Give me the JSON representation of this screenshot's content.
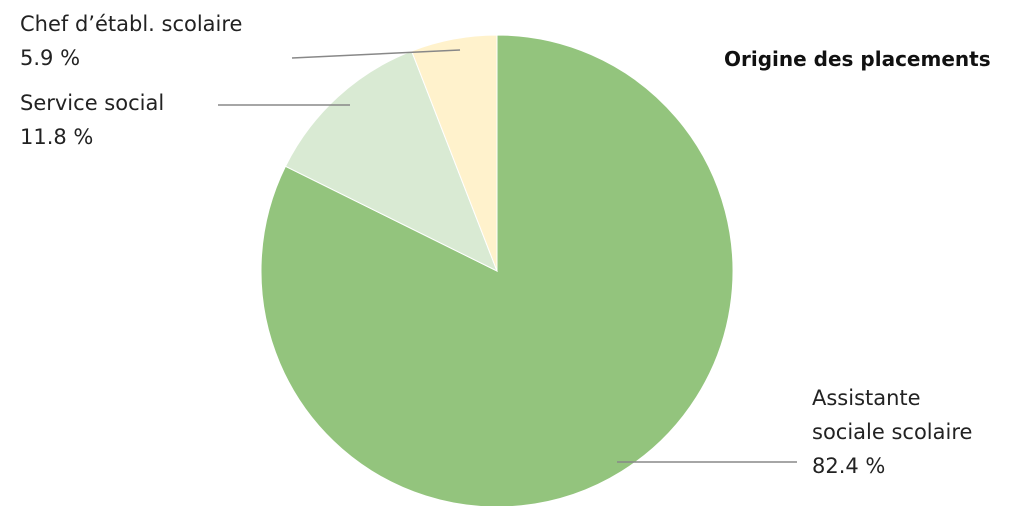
{
  "chart_data": {
    "type": "pie",
    "title": "Origine des placements",
    "start_angle_deg": 0,
    "direction": "clockwise",
    "slices": [
      {
        "category": "Assistante sociale scolaire",
        "value": 82.4,
        "label_lines": [
          "Assistante",
          "sociale scolaire"
        ],
        "value_label": "82.4 %",
        "color": "#93c47d"
      },
      {
        "category": "Service social",
        "value": 11.8,
        "label_lines": [
          "Service social"
        ],
        "value_label": "11.8 %",
        "color": "#d9ead3"
      },
      {
        "category": "Chef d’établ. scolaire",
        "value": 5.9,
        "label_lines": [
          "Chef d’établ. scolaire"
        ],
        "value_label": "5.9 %",
        "color": "#fff2cc"
      }
    ],
    "leader_color": "#888888",
    "legend": "none"
  }
}
